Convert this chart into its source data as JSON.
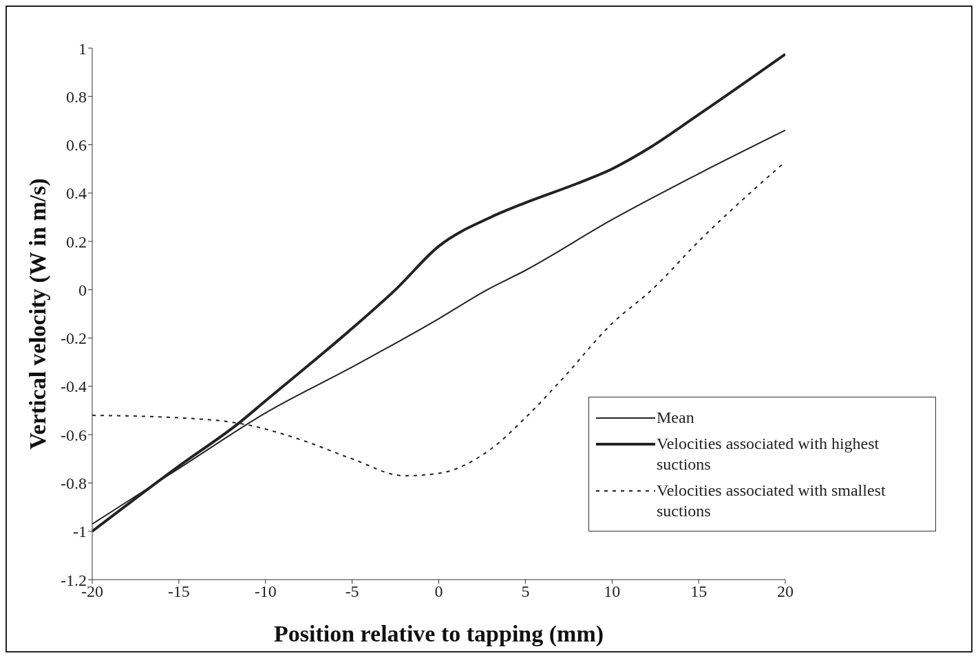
{
  "chart_data": {
    "type": "line",
    "xlabel": "Position relative to tapping (mm)",
    "ylabel": "Vertical velocity (W in m/s)",
    "xlim": [
      -20,
      20
    ],
    "xticks": [
      -20,
      -15,
      -10,
      -5,
      0,
      5,
      10,
      15,
      20
    ],
    "ylim": [
      -1.2,
      1
    ],
    "yticks": [
      -1.2,
      -1,
      -0.8,
      -0.6,
      -0.4,
      -0.2,
      0,
      0.2,
      0.4,
      0.6,
      0.8,
      1
    ],
    "grid": false,
    "legend": "bottom right",
    "marker": "none",
    "series": [
      {
        "name": "Mean",
        "color": "#222222",
        "line_style": "solid",
        "x": [
          -20,
          -15,
          -10,
          -5,
          0,
          2.8,
          5,
          10,
          15,
          20
        ],
        "values": [
          -0.97,
          -0.74,
          -0.51,
          -0.32,
          -0.12,
          0,
          0.08,
          0.29,
          0.48,
          0.66
        ]
      },
      {
        "name": "Velocities associated with highest suctions",
        "color": "#222222",
        "line_style": "solid",
        "x": [
          -20,
          -15,
          -11.5,
          -10,
          -5,
          -2.5,
          0,
          3,
          5,
          8,
          10,
          12,
          15,
          20
        ],
        "values": [
          -1.0,
          -0.73,
          -0.55,
          -0.46,
          -0.16,
          0,
          0.18,
          0.3,
          0.36,
          0.44,
          0.5,
          0.58,
          0.725,
          0.975
        ]
      },
      {
        "name": "Velocities associated with smallest suctions",
        "color": "#222222",
        "line_style": "dashed",
        "x": [
          -20,
          -15,
          -11,
          -8,
          -5,
          -2,
          0,
          3,
          5,
          7,
          10,
          12.3,
          15,
          20
        ],
        "values": [
          -0.52,
          -0.53,
          -0.56,
          -0.62,
          -0.7,
          -0.77,
          -0.76,
          -0.66,
          -0.53,
          -0.38,
          -0.14,
          0,
          0.2,
          0.53
        ]
      }
    ]
  }
}
